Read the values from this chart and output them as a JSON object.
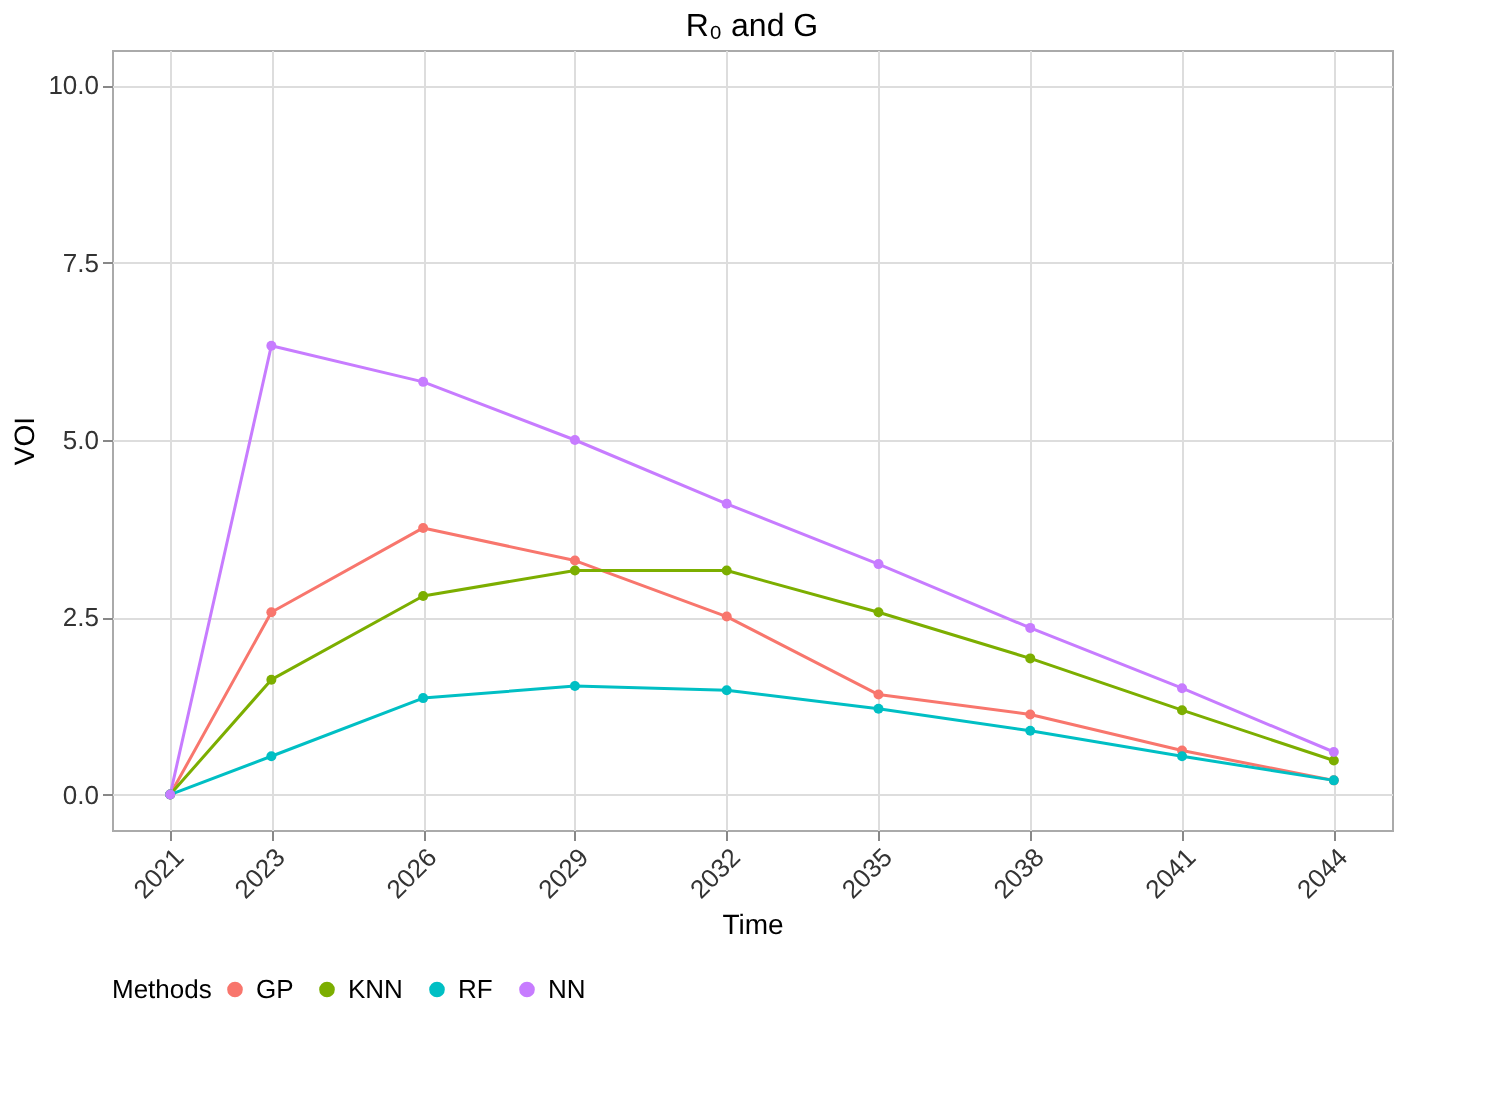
{
  "chart_data": {
    "type": "line",
    "title": "R₀ and G",
    "xlabel": "Time",
    "ylabel": "VOI",
    "legend_title": "Methods",
    "x": [
      2021,
      2023,
      2026,
      2029,
      2032,
      2035,
      2038,
      2041,
      2044
    ],
    "xlim": [
      2019.85,
      2045.15
    ],
    "xticks": [
      2021,
      2023,
      2026,
      2029,
      2032,
      2035,
      2038,
      2041,
      2044
    ],
    "ylim": [
      -0.5,
      10.5
    ],
    "yticks": [
      {
        "value": 0,
        "label": "0.0"
      },
      {
        "value": 2.5,
        "label": "2.5"
      },
      {
        "value": 5,
        "label": "5.0"
      },
      {
        "value": 7.5,
        "label": "7.5"
      },
      {
        "value": 10,
        "label": "10.0"
      }
    ],
    "grid": true,
    "legend": "bottom",
    "marker": "circle",
    "line_style": "solid",
    "series": [
      {
        "name": "GP",
        "color": "#f8766d",
        "values": [
          0,
          2.57,
          3.76,
          3.3,
          2.51,
          1.41,
          1.13,
          0.62,
          0.2
        ]
      },
      {
        "name": "KNN",
        "color": "#7cae00",
        "values": [
          0,
          1.62,
          2.8,
          3.16,
          3.16,
          2.57,
          1.92,
          1.19,
          0.48
        ]
      },
      {
        "name": "RF",
        "color": "#00bfc4",
        "values": [
          0,
          0.54,
          1.36,
          1.53,
          1.47,
          1.21,
          0.9,
          0.54,
          0.2
        ]
      },
      {
        "name": "NN",
        "color": "#c77cff",
        "values": [
          0,
          6.33,
          5.82,
          5.0,
          4.1,
          3.25,
          2.35,
          1.5,
          0.6
        ]
      }
    ]
  }
}
